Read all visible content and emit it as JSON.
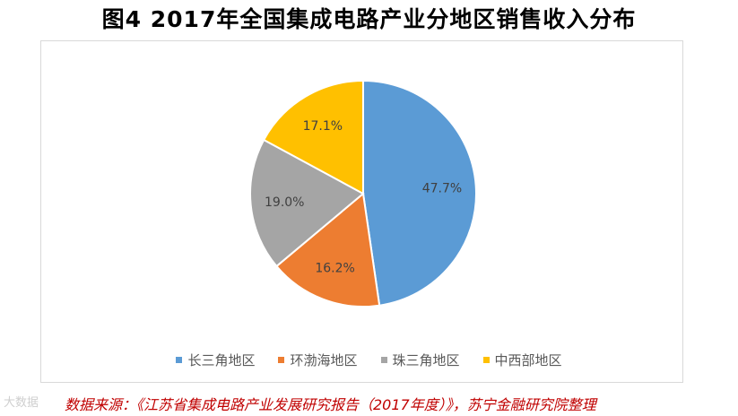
{
  "chart_data": {
    "type": "pie",
    "title": "图4 2017年全国集成电路产业分地区销售收入分布",
    "categories": [
      "长三角地区",
      "环渤海地区",
      "珠三角地区",
      "中西部地区"
    ],
    "values": [
      47.7,
      16.2,
      19.0,
      17.1
    ],
    "data_labels": [
      "47.7%",
      "16.2%",
      "19.0%",
      "17.1%"
    ],
    "colors": [
      "#5b9bd5",
      "#ed7d31",
      "#a5a5a5",
      "#ffc000"
    ],
    "legend_position": "bottom"
  },
  "source_text": "数据来源：《江苏省集成电路产业发展研究报告（2017年度）》，苏宁金融研究院整理",
  "watermark_text": "大数据"
}
